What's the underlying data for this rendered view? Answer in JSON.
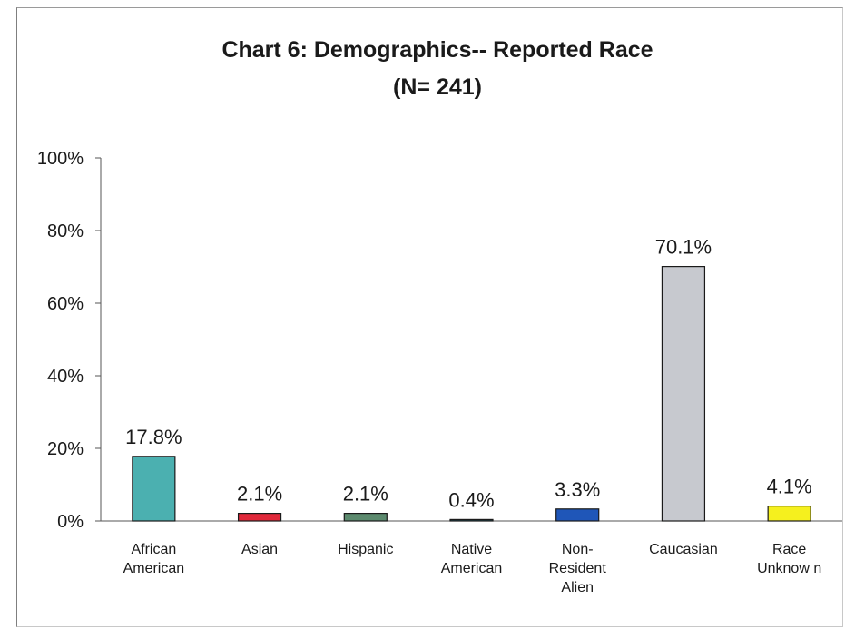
{
  "chart_data": {
    "type": "bar",
    "title": "Chart 6: Demographics-- Reported Race",
    "subtitle": "(N= 241)",
    "categories": [
      [
        "African",
        "American"
      ],
      [
        "Asian"
      ],
      [
        "Hispanic"
      ],
      [
        "Native",
        "American"
      ],
      [
        "Non-",
        "Resident",
        "Alien"
      ],
      [
        "Caucasian"
      ],
      [
        "Race",
        "Unknow n"
      ]
    ],
    "values": [
      17.8,
      2.1,
      2.1,
      0.4,
      3.3,
      70.1,
      4.1
    ],
    "value_labels": [
      "17.8%",
      "2.1%",
      "2.1%",
      "0.4%",
      "3.3%",
      "70.1%",
      "4.1%"
    ],
    "colors": [
      "#4bb0b0",
      "#e0283a",
      "#5c8a6e",
      "#1f4a52",
      "#1f56b8",
      "#c7c9cf",
      "#f5f01e"
    ],
    "ylim": [
      0,
      100
    ],
    "yticks": [
      0,
      20,
      40,
      60,
      80,
      100
    ],
    "ytick_labels": [
      "0%",
      "20%",
      "40%",
      "60%",
      "80%",
      "100%"
    ],
    "grid": false,
    "legend": "none"
  }
}
